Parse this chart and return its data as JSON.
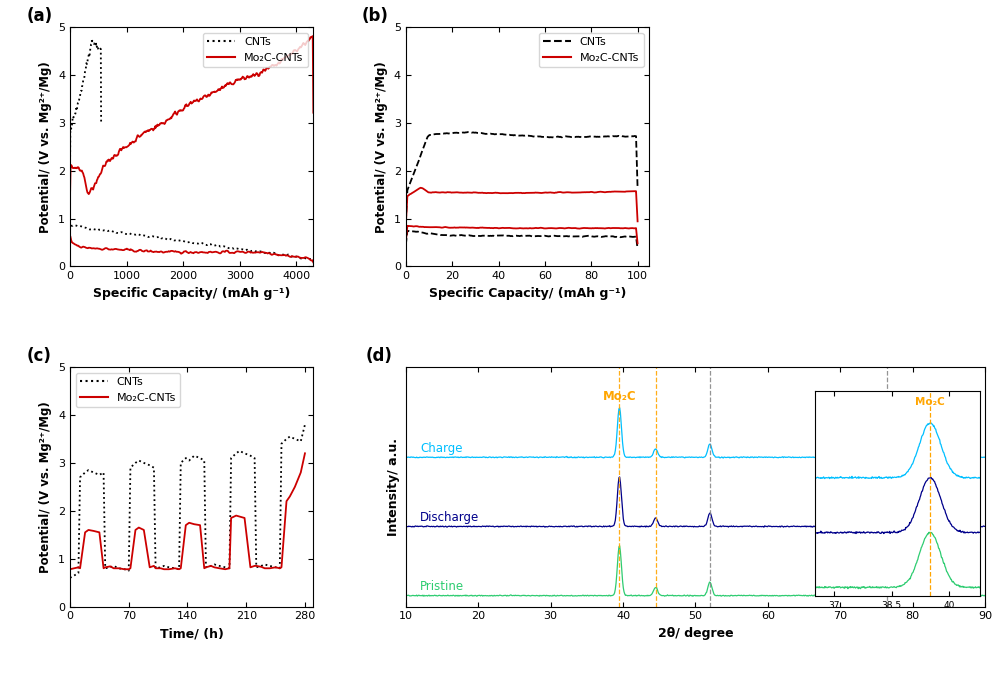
{
  "panel_a": {
    "title": "(a)",
    "xlabel": "Specific Capacity/ (mAh g⁻¹)",
    "ylabel": "Potential/ (V vs. Mg²⁺/Mg)",
    "xlim": [
      0,
      4300
    ],
    "ylim": [
      0,
      5
    ],
    "xticks": [
      0,
      1000,
      2000,
      3000,
      4000
    ],
    "yticks": [
      0,
      1,
      2,
      3,
      4,
      5
    ]
  },
  "panel_b": {
    "title": "(b)",
    "xlabel": "Specific Capacity/ (mAh g⁻¹)",
    "ylabel": "Potential/ (V vs. Mg²⁺/Mg)",
    "xlim": [
      0,
      105
    ],
    "ylim": [
      0,
      5
    ],
    "xticks": [
      0,
      20,
      40,
      60,
      80,
      100
    ],
    "yticks": [
      0,
      1,
      2,
      3,
      4,
      5
    ]
  },
  "panel_c": {
    "title": "(c)",
    "xlabel": "Time/ (h)",
    "ylabel": "Potential/ (V vs. Mg²⁺/Mg)",
    "xlim": [
      0,
      290
    ],
    "ylim": [
      0,
      5
    ],
    "xticks": [
      0,
      70,
      140,
      210,
      280
    ],
    "yticks": [
      0,
      1,
      2,
      3,
      4,
      5
    ]
  },
  "panel_d": {
    "title": "(d)",
    "xlabel": "2θ/ degree",
    "ylabel": "Intensity/ a.u.",
    "xticks_main": [
      10,
      20,
      30,
      40,
      50,
      60,
      70,
      80,
      90
    ],
    "vline_orange": [
      39.5,
      44.5
    ],
    "vline_gray": [
      52.0,
      76.5
    ]
  },
  "colors": {
    "CNTs": "#000000",
    "Mo2C_CNTs": "#CC0000"
  },
  "legend_Mo2C": "Mo₂C-CNTs"
}
